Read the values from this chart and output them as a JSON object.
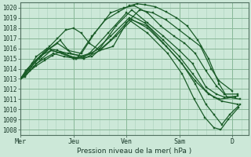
{
  "bg_color": "#cce8d8",
  "plot_bg_color": "#cce8d8",
  "grid_major_color": "#88b898",
  "grid_minor_color": "#aad0bc",
  "line_color": "#1a5c28",
  "ylabel": "Pression niveau de la mer( hPa )",
  "ylim": [
    1007.5,
    1020.5
  ],
  "yticks": [
    1008,
    1009,
    1010,
    1011,
    1012,
    1013,
    1014,
    1015,
    1016,
    1017,
    1018,
    1019,
    1020
  ],
  "xtick_labels": [
    "Mer",
    "Jeu",
    "Ven",
    "Sam",
    "D"
  ],
  "xtick_positions": [
    0,
    1,
    2,
    3,
    4
  ],
  "xlim": [
    0,
    4.3
  ],
  "lines": [
    {
      "x": [
        0.0,
        0.08,
        0.18,
        0.3,
        0.45,
        0.6,
        0.75,
        0.9,
        1.1,
        1.35,
        1.6,
        1.85,
        2.05,
        2.2,
        2.35,
        2.55,
        2.75,
        2.95,
        3.15,
        3.35,
        3.55,
        3.75,
        3.9,
        4.15
      ],
      "y": [
        1013.0,
        1013.2,
        1013.8,
        1014.3,
        1014.8,
        1015.3,
        1015.7,
        1015.5,
        1015.3,
        1017.2,
        1018.8,
        1019.6,
        1020.2,
        1020.4,
        1020.3,
        1020.1,
        1019.6,
        1019.0,
        1018.2,
        1016.8,
        1015.0,
        1012.5,
        1011.2,
        1011.0
      ]
    },
    {
      "x": [
        0.0,
        0.1,
        0.2,
        0.35,
        0.5,
        0.7,
        0.9,
        1.15,
        1.4,
        1.7,
        1.95,
        2.15,
        2.4,
        2.65,
        2.9,
        3.1,
        3.3,
        3.5,
        3.7,
        3.85,
        4.1
      ],
      "y": [
        1013.0,
        1013.5,
        1014.2,
        1015.0,
        1015.8,
        1016.5,
        1015.8,
        1015.5,
        1017.5,
        1019.5,
        1020.0,
        1020.2,
        1019.5,
        1018.2,
        1017.2,
        1016.5,
        1015.5,
        1013.8,
        1012.3,
        1011.5,
        1011.5
      ]
    },
    {
      "x": [
        0.0,
        0.08,
        0.18,
        0.3,
        0.42,
        0.55,
        0.7,
        0.85,
        1.0,
        1.15,
        1.3,
        1.5,
        1.75,
        2.0,
        2.25,
        2.5,
        2.75,
        3.0,
        3.2,
        3.4,
        3.6,
        3.75,
        4.0
      ],
      "y": [
        1013.0,
        1013.5,
        1014.0,
        1014.8,
        1015.5,
        1016.2,
        1017.0,
        1017.8,
        1018.0,
        1017.5,
        1016.5,
        1015.8,
        1016.2,
        1018.5,
        1019.8,
        1019.5,
        1018.8,
        1017.8,
        1017.0,
        1016.2,
        1014.0,
        1012.8,
        1011.8
      ]
    },
    {
      "x": [
        0.0,
        0.1,
        0.22,
        0.38,
        0.55,
        0.75,
        0.95,
        1.2,
        1.5,
        1.8,
        2.1,
        2.4,
        2.7,
        3.0,
        3.25,
        3.5,
        3.7,
        3.85,
        4.1
      ],
      "y": [
        1013.0,
        1013.8,
        1014.5,
        1015.2,
        1016.0,
        1016.8,
        1015.5,
        1015.2,
        1016.0,
        1018.2,
        1019.8,
        1018.5,
        1017.2,
        1015.8,
        1014.5,
        1012.2,
        1011.5,
        1011.2,
        1011.3
      ]
    },
    {
      "x": [
        0.0,
        0.12,
        0.25,
        0.4,
        0.58,
        0.78,
        1.0,
        1.3,
        1.65,
        2.0,
        2.35,
        2.7,
        3.0,
        3.25,
        3.5,
        3.65,
        3.8,
        4.1
      ],
      "y": [
        1013.0,
        1013.5,
        1014.2,
        1015.0,
        1015.8,
        1015.5,
        1015.0,
        1015.5,
        1017.5,
        1019.5,
        1018.5,
        1016.8,
        1015.2,
        1013.5,
        1011.8,
        1011.2,
        1010.8,
        1010.5
      ]
    },
    {
      "x": [
        0.0,
        0.15,
        0.3,
        0.5,
        0.7,
        0.95,
        1.2,
        1.5,
        1.8,
        2.1,
        2.4,
        2.7,
        3.0,
        3.3,
        3.55,
        3.75,
        4.05
      ],
      "y": [
        1013.0,
        1014.0,
        1015.2,
        1016.0,
        1015.8,
        1015.2,
        1015.0,
        1015.8,
        1017.2,
        1018.8,
        1018.2,
        1016.5,
        1014.8,
        1012.8,
        1011.5,
        1011.0,
        1011.2
      ]
    },
    {
      "x": [
        0.0,
        0.1,
        0.22,
        0.38,
        0.58,
        0.8,
        1.05,
        1.35,
        1.7,
        2.05,
        2.4,
        2.75,
        3.05,
        3.3,
        3.5,
        3.65,
        3.8,
        3.95,
        4.15
      ],
      "y": [
        1013.0,
        1013.8,
        1014.5,
        1015.3,
        1015.8,
        1015.5,
        1015.0,
        1015.5,
        1017.2,
        1019.0,
        1018.0,
        1016.2,
        1014.5,
        1012.5,
        1010.5,
        1009.5,
        1008.5,
        1009.5,
        1010.5
      ]
    },
    {
      "x": [
        0.0,
        0.08,
        0.18,
        0.3,
        0.45,
        0.62,
        0.82,
        1.05,
        1.35,
        1.7,
        2.05,
        2.4,
        2.78,
        3.05,
        3.28,
        3.48,
        3.65,
        3.78,
        3.92,
        4.12
      ],
      "y": [
        1013.0,
        1013.3,
        1013.8,
        1014.5,
        1015.0,
        1015.5,
        1015.2,
        1015.0,
        1015.2,
        1016.8,
        1018.8,
        1017.5,
        1015.5,
        1013.5,
        1011.0,
        1009.2,
        1008.2,
        1008.0,
        1009.0,
        1010.2
      ]
    }
  ]
}
